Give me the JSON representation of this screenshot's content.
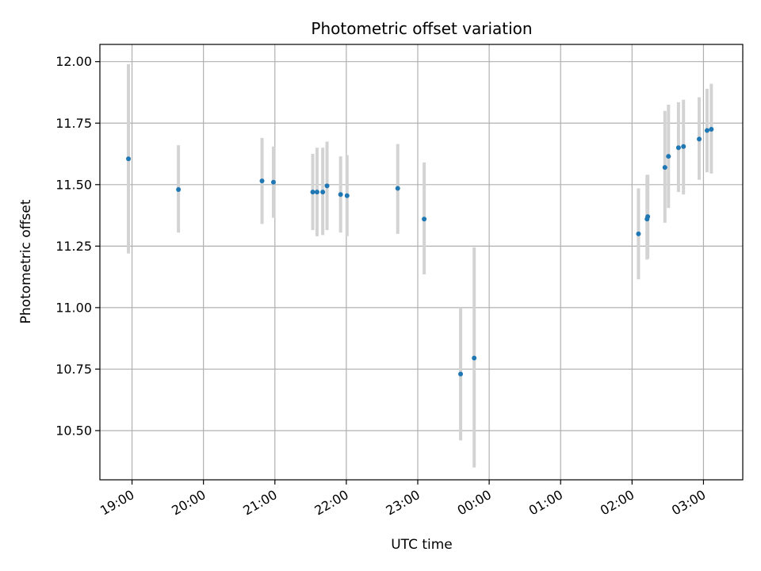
{
  "chart_data": {
    "type": "scatter",
    "title": "Photometric offset variation",
    "xlabel": "UTC time",
    "ylabel": "Photometric offset",
    "x_unit": "hours after 19:00 UTC (values past 24 fall on the next day)",
    "xlim": [
      -0.45,
      8.55
    ],
    "ylim": [
      10.3,
      12.07
    ],
    "grid": true,
    "x_ticks": [
      {
        "value": 0,
        "label": "19:00"
      },
      {
        "value": 1,
        "label": "20:00"
      },
      {
        "value": 2,
        "label": "21:00"
      },
      {
        "value": 3,
        "label": "22:00"
      },
      {
        "value": 4,
        "label": "23:00"
      },
      {
        "value": 5,
        "label": "00:00"
      },
      {
        "value": 6,
        "label": "01:00"
      },
      {
        "value": 7,
        "label": "02:00"
      },
      {
        "value": 8,
        "label": "03:00"
      }
    ],
    "y_ticks": [
      {
        "value": 10.5,
        "label": "10.50"
      },
      {
        "value": 10.75,
        "label": "10.75"
      },
      {
        "value": 11.0,
        "label": "11.00"
      },
      {
        "value": 11.25,
        "label": "11.25"
      },
      {
        "value": 11.5,
        "label": "11.50"
      },
      {
        "value": 11.75,
        "label": "11.75"
      },
      {
        "value": 12.0,
        "label": "12.00"
      }
    ],
    "point_color": "#1f77b4",
    "errorbar_color": "#d3d3d3",
    "points": [
      {
        "x": -0.05,
        "y": 11.605,
        "lo": 11.22,
        "hi": 11.99
      },
      {
        "x": 0.65,
        "y": 11.48,
        "lo": 11.305,
        "hi": 11.66
      },
      {
        "x": 1.82,
        "y": 11.515,
        "lo": 11.34,
        "hi": 11.69
      },
      {
        "x": 1.98,
        "y": 11.51,
        "lo": 11.365,
        "hi": 11.655
      },
      {
        "x": 2.53,
        "y": 11.47,
        "lo": 11.315,
        "hi": 11.625
      },
      {
        "x": 2.59,
        "y": 11.47,
        "lo": 11.29,
        "hi": 11.65
      },
      {
        "x": 2.67,
        "y": 11.47,
        "lo": 11.295,
        "hi": 11.65
      },
      {
        "x": 2.73,
        "y": 11.495,
        "lo": 11.315,
        "hi": 11.675
      },
      {
        "x": 2.92,
        "y": 11.46,
        "lo": 11.305,
        "hi": 11.615
      },
      {
        "x": 3.01,
        "y": 11.455,
        "lo": 11.29,
        "hi": 11.62
      },
      {
        "x": 3.72,
        "y": 11.485,
        "lo": 11.3,
        "hi": 11.665
      },
      {
        "x": 4.09,
        "y": 11.36,
        "lo": 11.135,
        "hi": 11.59
      },
      {
        "x": 4.6,
        "y": 10.73,
        "lo": 10.46,
        "hi": 11.0
      },
      {
        "x": 4.79,
        "y": 10.795,
        "lo": 10.35,
        "hi": 11.245
      },
      {
        "x": 7.09,
        "y": 11.3,
        "lo": 11.115,
        "hi": 11.485
      },
      {
        "x": 7.21,
        "y": 11.36,
        "lo": 11.195,
        "hi": 11.54
      },
      {
        "x": 7.22,
        "y": 11.37,
        "lo": 11.2,
        "hi": 11.54
      },
      {
        "x": 7.46,
        "y": 11.57,
        "lo": 11.345,
        "hi": 11.8
      },
      {
        "x": 7.51,
        "y": 11.615,
        "lo": 11.405,
        "hi": 11.825
      },
      {
        "x": 7.65,
        "y": 11.65,
        "lo": 11.47,
        "hi": 11.835
      },
      {
        "x": 7.72,
        "y": 11.655,
        "lo": 11.46,
        "hi": 11.845
      },
      {
        "x": 7.94,
        "y": 11.685,
        "lo": 11.52,
        "hi": 11.855
      },
      {
        "x": 8.05,
        "y": 11.72,
        "lo": 11.55,
        "hi": 11.89
      },
      {
        "x": 8.11,
        "y": 11.725,
        "lo": 11.545,
        "hi": 11.91
      }
    ]
  }
}
